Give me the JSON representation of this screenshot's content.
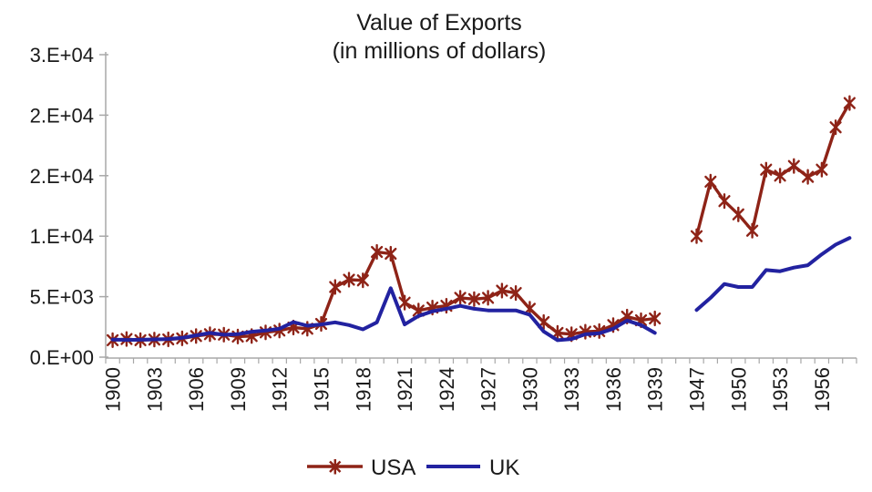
{
  "title": {
    "line1": "Value of Exports",
    "line2": "(in millions of dollars)"
  },
  "colors": {
    "background": "#ffffff",
    "axis": "#a8a8a8",
    "text": "#1a1a1a",
    "usa_series": "#8E2317",
    "uk_series": "#2222A0"
  },
  "chart_data": {
    "type": "line",
    "title": "Value of Exports (in millions of dollars)",
    "xlabel": "",
    "ylabel": "",
    "grid": false,
    "legend_position": "bottom",
    "ylim": [
      0,
      25000
    ],
    "y_ticks": [
      {
        "label": "0.E+00",
        "value": 0
      },
      {
        "label": "5.E+03",
        "value": 5000
      },
      {
        "label": "1.E+04",
        "value": 10000
      },
      {
        "label": "2.E+04",
        "value": 15000
      },
      {
        "label": "2.E+04",
        "value": 20000
      },
      {
        "label": "3.E+04",
        "value": 25000
      }
    ],
    "x_label_every": 3,
    "x_tick_labels_shown": [
      "1900",
      "1903",
      "1906",
      "1909",
      "1912",
      "1915",
      "1918",
      "1921",
      "1924",
      "1927",
      "1930",
      "1933",
      "1936",
      "1939",
      "1947",
      "1950",
      "1953",
      "1956"
    ],
    "categories": [
      "1900",
      "1901",
      "1902",
      "1903",
      "1904",
      "1905",
      "1906",
      "1907",
      "1908",
      "1909",
      "1910",
      "1911",
      "1912",
      "1913",
      "1914",
      "1915",
      "1916",
      "1917",
      "1918",
      "1919",
      "1920",
      "1921",
      "1922",
      "1923",
      "1924",
      "1925",
      "1926",
      "1927",
      "1928",
      "1929",
      "1930",
      "1931",
      "1932",
      "1933",
      "1934",
      "1935",
      "1936",
      "1937",
      "1938",
      "1939",
      "",
      "",
      "1947",
      "1948",
      "1949",
      "1950",
      "1951",
      "1952",
      "1953",
      "1954",
      "1955",
      "1956",
      "1957",
      "1958"
    ],
    "series": [
      {
        "name": "USA",
        "color": "#8E2317",
        "marker": "star",
        "line_width": 3.4,
        "values": [
          1400,
          1500,
          1400,
          1450,
          1470,
          1550,
          1750,
          1900,
          1860,
          1700,
          1750,
          2050,
          2200,
          2450,
          2350,
          2750,
          5800,
          6400,
          6350,
          8700,
          8550,
          4500,
          3850,
          4100,
          4250,
          4900,
          4800,
          4900,
          5500,
          5300,
          4000,
          2900,
          2000,
          1900,
          2100,
          2150,
          2650,
          3350,
          3050,
          3200,
          null,
          null,
          10000,
          14500,
          12900,
          11800,
          10450,
          15500,
          15000,
          15800,
          14900,
          15500,
          19000,
          21000
        ]
      },
      {
        "name": "UK",
        "color": "#2222A0",
        "marker": "none",
        "line_width": 4,
        "values": [
          1450,
          1420,
          1440,
          1470,
          1500,
          1600,
          1800,
          2000,
          1850,
          1900,
          2100,
          2200,
          2350,
          2900,
          2600,
          2700,
          2880,
          2650,
          2300,
          2880,
          5700,
          2700,
          3400,
          3790,
          4000,
          4240,
          4000,
          3860,
          3860,
          3860,
          3500,
          2120,
          1400,
          1500,
          1890,
          1970,
          2350,
          3030,
          2650,
          2000,
          null,
          null,
          3900,
          4900,
          6050,
          5800,
          5800,
          7200,
          7100,
          7400,
          7600,
          8500,
          9300,
          9850
        ]
      }
    ]
  },
  "legend": {
    "usa_label": "USA",
    "uk_label": "UK"
  }
}
